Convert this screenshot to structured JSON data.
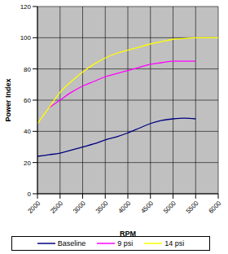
{
  "chart_data": {
    "type": "line",
    "x_label": "RPM",
    "y_label": "Power Index",
    "x": [
      2000,
      2250,
      2500,
      2750,
      3000,
      3250,
      3500,
      3750,
      4000,
      4250,
      4500,
      4750,
      5000,
      5250,
      5500,
      5750,
      6000
    ],
    "series": [
      {
        "name": "Baseline",
        "color": "#000080",
        "values": [
          24,
          25,
          26,
          28,
          30,
          32,
          34.5,
          36.5,
          39,
          42,
          45,
          47,
          48,
          48.5,
          48,
          null,
          null
        ]
      },
      {
        "name": "9 psi",
        "color": "#ff00ff",
        "values": [
          null,
          55,
          60,
          65,
          69,
          72,
          75,
          77,
          79,
          81,
          83,
          84,
          85,
          85,
          85,
          null,
          null
        ]
      },
      {
        "name": "14 psi",
        "color": "#ffff00",
        "values": [
          45,
          55,
          65,
          72,
          78,
          83,
          87,
          90,
          92,
          94,
          96,
          97.5,
          99,
          99.5,
          100,
          100,
          100
        ]
      }
    ],
    "xlim": [
      2000,
      6000
    ],
    "xticks": [
      2000,
      2500,
      3000,
      3500,
      4000,
      4500,
      5000,
      5500,
      6000
    ],
    "ylim": [
      0,
      120
    ],
    "yticks": [
      0,
      20,
      40,
      60,
      80,
      100,
      120
    ],
    "grid": true,
    "legend": "bottom"
  }
}
